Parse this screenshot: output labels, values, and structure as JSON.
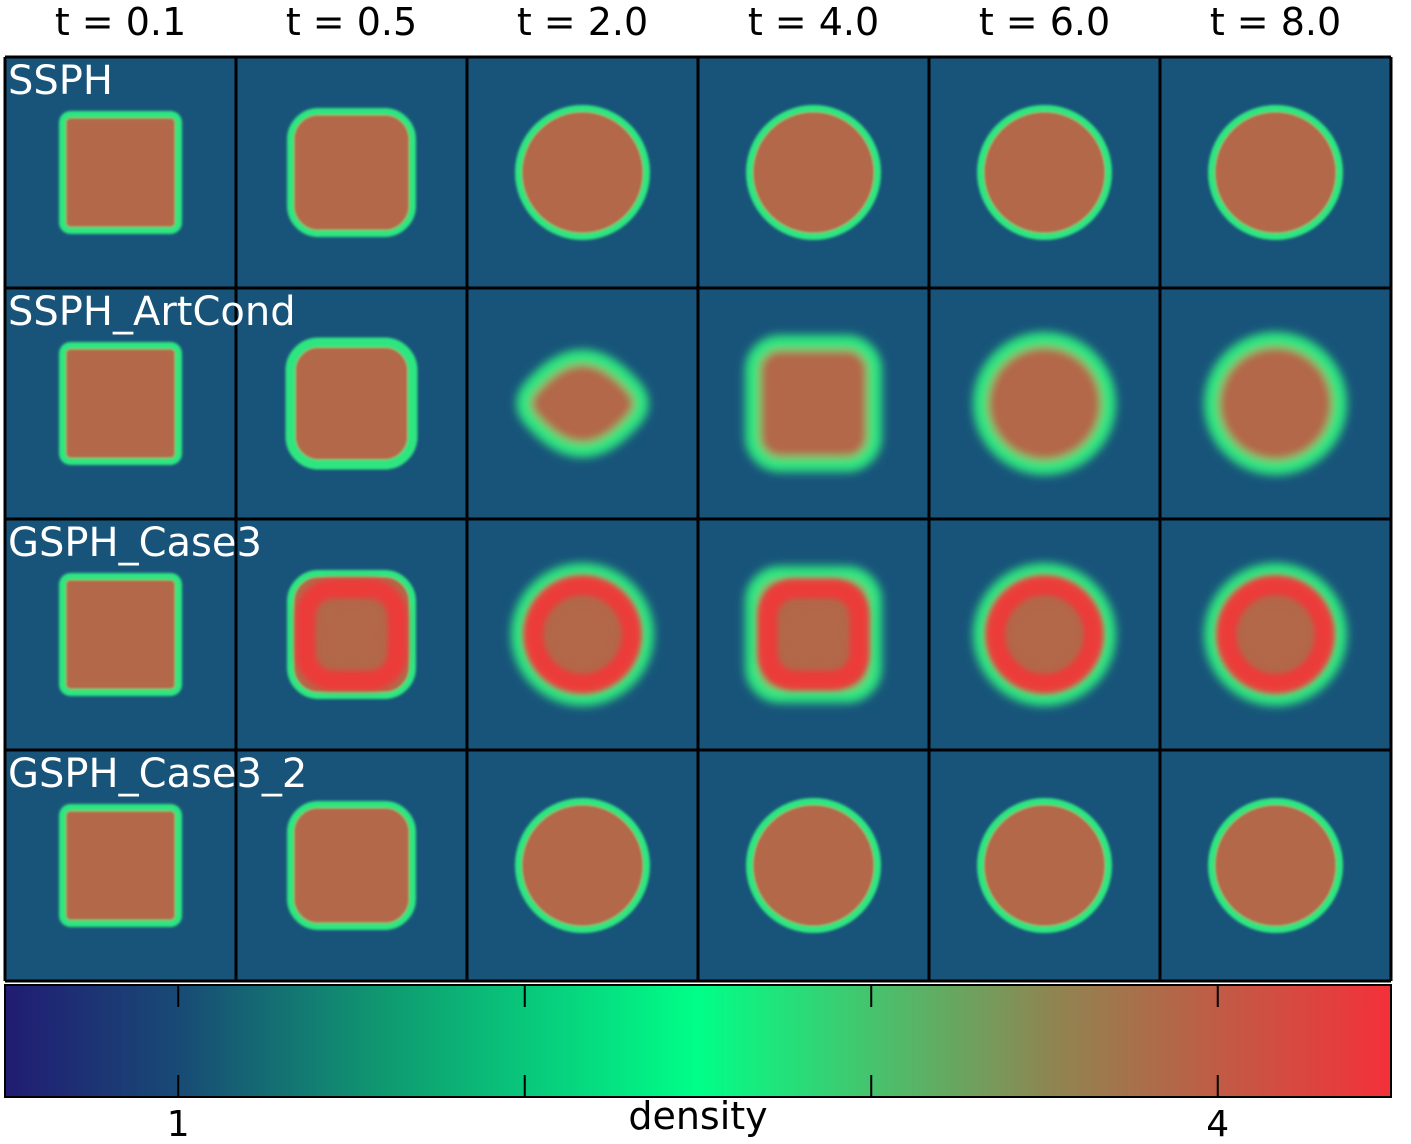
{
  "chart_data": {
    "type": "heatmap",
    "columns": [
      "t = 0.1",
      "t = 0.5",
      "t = 2.0",
      "t = 4.0",
      "t = 6.0",
      "t = 8.0"
    ],
    "rows": [
      "SSPH",
      "SSPH_ArtCond",
      "GSPH_Case3",
      "GSPH_Case3_2"
    ],
    "panels": [
      [
        {
          "shape": "square",
          "rim": "thin",
          "interior": "flat",
          "dense_ring": false
        },
        {
          "shape": "rounded-square",
          "rim": "thin",
          "interior": "flat",
          "dense_ring": false
        },
        {
          "shape": "circle",
          "rim": "thin",
          "interior": "flat",
          "dense_ring": false
        },
        {
          "shape": "circle",
          "rim": "thin",
          "interior": "flat",
          "dense_ring": false
        },
        {
          "shape": "circle",
          "rim": "thin",
          "interior": "flat",
          "dense_ring": false
        },
        {
          "shape": "circle",
          "rim": "thin",
          "interior": "flat",
          "dense_ring": false
        }
      ],
      [
        {
          "shape": "square",
          "rim": "thin",
          "interior": "flat",
          "dense_ring": false
        },
        {
          "shape": "rounded-square",
          "rim": "thick",
          "interior": "flat",
          "dense_ring": false
        },
        {
          "shape": "rounded-diamond",
          "rim": "diffuse",
          "interior": "flat",
          "dense_ring": false
        },
        {
          "shape": "rounded-square",
          "rim": "diffuse",
          "interior": "flat",
          "dense_ring": false
        },
        {
          "shape": "circle",
          "rim": "diffuse",
          "interior": "flat",
          "dense_ring": false
        },
        {
          "shape": "circle",
          "rim": "diffuse",
          "interior": "flat",
          "dense_ring": false
        }
      ],
      [
        {
          "shape": "square",
          "rim": "thin",
          "interior": "flat",
          "dense_ring": false
        },
        {
          "shape": "rounded-square",
          "rim": "thin",
          "interior": "flat",
          "dense_ring": true
        },
        {
          "shape": "circle",
          "rim": "diffuse",
          "interior": "flat",
          "dense_ring": true
        },
        {
          "shape": "rounded-square",
          "rim": "diffuse",
          "interior": "flat",
          "dense_ring": true
        },
        {
          "shape": "circle",
          "rim": "diffuse",
          "interior": "flat",
          "dense_ring": true
        },
        {
          "shape": "circle",
          "rim": "diffuse",
          "interior": "flat",
          "dense_ring": true
        }
      ],
      [
        {
          "shape": "square",
          "rim": "thin",
          "interior": "flat",
          "dense_ring": false
        },
        {
          "shape": "rounded-square",
          "rim": "thin",
          "interior": "flat",
          "dense_ring": false
        },
        {
          "shape": "circle",
          "rim": "thin",
          "interior": "flat",
          "dense_ring": false
        },
        {
          "shape": "circle",
          "rim": "thin",
          "interior": "flat",
          "dense_ring": false
        },
        {
          "shape": "circle",
          "rim": "thin",
          "interior": "flat",
          "dense_ring": false
        },
        {
          "shape": "circle",
          "rim": "thin",
          "interior": "flat",
          "dense_ring": false
        }
      ]
    ],
    "colorbar": {
      "label": "density",
      "range": [
        0.5,
        4.5
      ],
      "ticks": [
        1,
        2,
        3,
        4
      ],
      "tick_labels": [
        "1",
        "",
        "",
        "4"
      ],
      "stops": [
        {
          "value": 0.5,
          "color": "#211c73"
        },
        {
          "value": 1.0,
          "color": "#184a75"
        },
        {
          "value": 1.6,
          "color": "#0f9a70"
        },
        {
          "value": 2.5,
          "color": "#00ff88"
        },
        {
          "value": 3.5,
          "color": "#8c8752"
        },
        {
          "value": 4.5,
          "color": "#f4303a"
        }
      ]
    },
    "colors": {
      "background": "#18547a",
      "rim": "#2de680",
      "interior": "#b2674a",
      "dense_ring": "#ef3a3a",
      "border": "#000000"
    }
  }
}
